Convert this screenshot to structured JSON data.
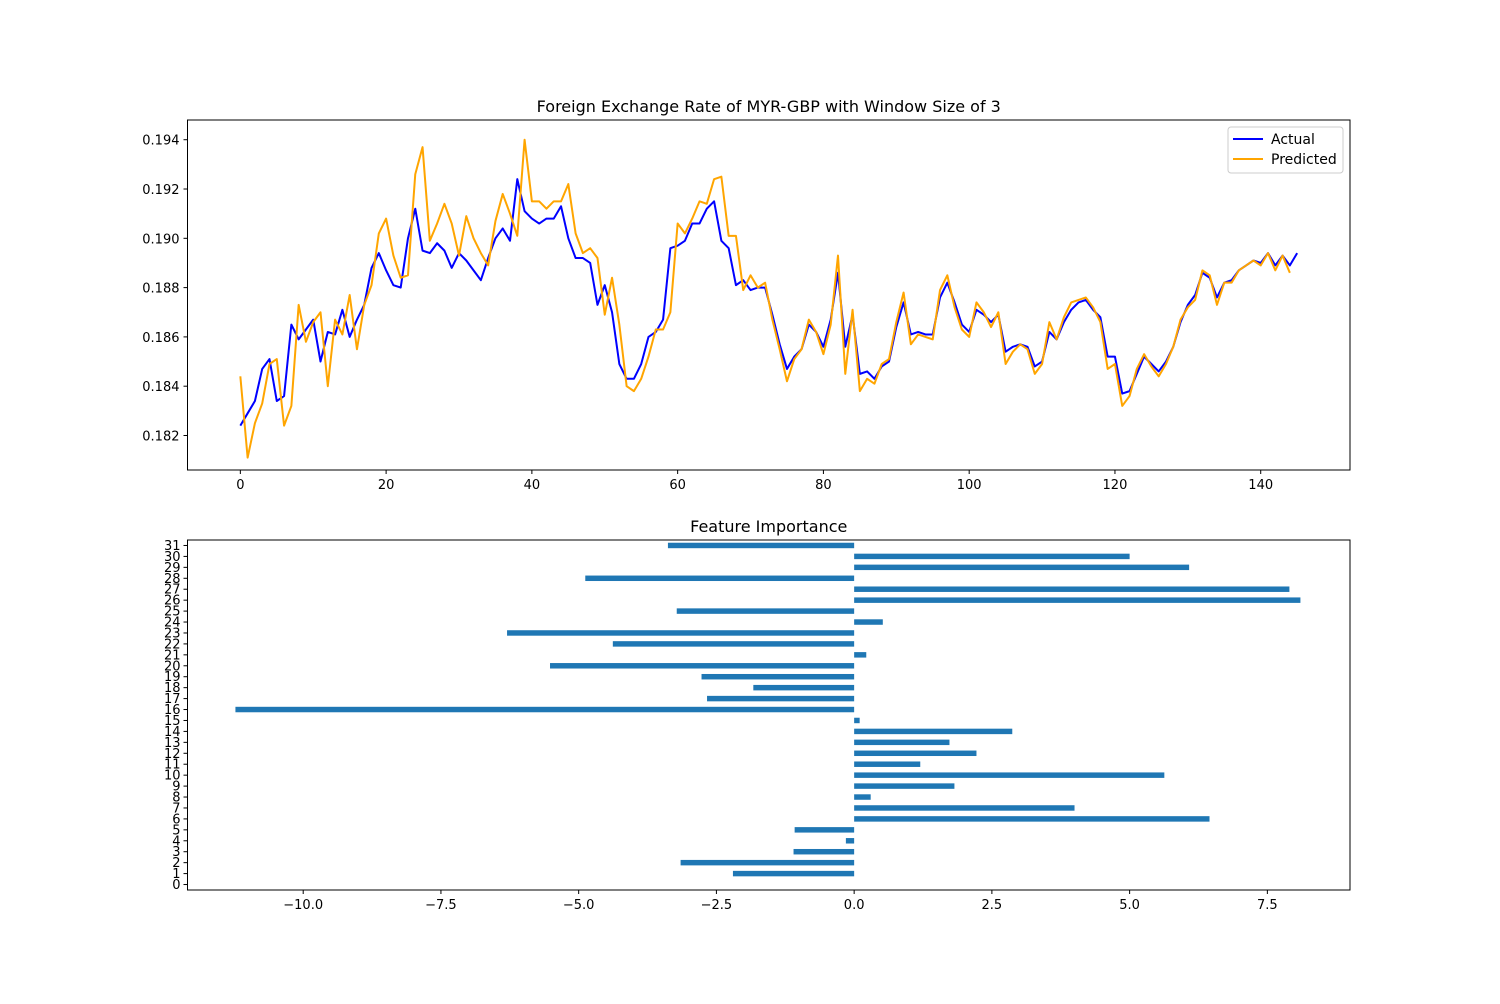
{
  "chart_data": [
    {
      "type": "line",
      "title": "Foreign Exchange Rate of MYR-GBP with Window Size of 3",
      "xlabel": "",
      "ylabel": "",
      "xlim": [
        -7.25,
        152.25
      ],
      "ylim": [
        0.1806,
        0.1948
      ],
      "xticks": [
        0,
        20,
        40,
        60,
        80,
        100,
        120,
        140
      ],
      "xtick_labels": [
        "0",
        "20",
        "40",
        "60",
        "80",
        "100",
        "120",
        "140"
      ],
      "yticks": [
        0.182,
        0.184,
        0.186,
        0.188,
        0.19,
        0.192,
        0.194
      ],
      "ytick_labels": [
        "0.182",
        "0.184",
        "0.186",
        "0.188",
        "0.190",
        "0.192",
        "0.194"
      ],
      "grid": false,
      "legend_position": "top-right",
      "series": [
        {
          "name": "Actual",
          "color": "#0000ff",
          "values": [
            0.1824,
            0.1829,
            0.1834,
            0.1847,
            0.1851,
            0.1834,
            0.1836,
            0.1865,
            0.1859,
            0.1863,
            0.1867,
            0.185,
            0.1862,
            0.1861,
            0.1871,
            0.186,
            0.1867,
            0.1873,
            0.1888,
            0.1894,
            0.1887,
            0.1881,
            0.188,
            0.19,
            0.1912,
            0.1895,
            0.1894,
            0.1898,
            0.1895,
            0.1888,
            0.1894,
            0.1891,
            0.1887,
            0.1883,
            0.1892,
            0.19,
            0.1904,
            0.1899,
            0.1924,
            0.1911,
            0.1908,
            0.1906,
            0.1908,
            0.1908,
            0.1913,
            0.19,
            0.1892,
            0.1892,
            0.189,
            0.1873,
            0.1881,
            0.187,
            0.1849,
            0.1843,
            0.1843,
            0.1849,
            0.186,
            0.1862,
            0.1867,
            0.1896,
            0.1897,
            0.1899,
            0.1906,
            0.1906,
            0.1912,
            0.1915,
            0.1899,
            0.1896,
            0.1881,
            0.1883,
            0.1879,
            0.188,
            0.188,
            0.1869,
            0.1857,
            0.1847,
            0.1852,
            0.1855,
            0.1865,
            0.1862,
            0.1856,
            0.1867,
            0.1886,
            0.1856,
            0.1869,
            0.1845,
            0.1846,
            0.1843,
            0.1848,
            0.185,
            0.1864,
            0.1874,
            0.1861,
            0.1862,
            0.1861,
            0.1861,
            0.1876,
            0.1882,
            0.1874,
            0.1865,
            0.1862,
            0.1871,
            0.1869,
            0.1866,
            0.1869,
            0.1854,
            0.1856,
            0.1857,
            0.1856,
            0.1848,
            0.185,
            0.1862,
            0.1859,
            0.1866,
            0.1871,
            0.1874,
            0.1875,
            0.1871,
            0.1868,
            0.1852,
            0.1852,
            0.1837,
            0.1838,
            0.1845,
            0.1852,
            0.1849,
            0.1846,
            0.185,
            0.1856,
            0.1866,
            0.1873,
            0.1877,
            0.1886,
            0.1884,
            0.1876,
            0.1882,
            0.1883,
            0.1887,
            0.1889,
            0.1891,
            0.189,
            0.1894,
            0.1889,
            0.1893,
            0.1889,
            0.1894
          ]
        },
        {
          "name": "Predicted",
          "color": "#ffa500",
          "values": [
            0.1844,
            0.1811,
            0.1825,
            0.1833,
            0.1849,
            0.1851,
            0.1824,
            0.1832,
            0.1873,
            0.1858,
            0.1866,
            0.187,
            0.184,
            0.1867,
            0.1861,
            0.1877,
            0.1855,
            0.1873,
            0.1881,
            0.1902,
            0.1908,
            0.1893,
            0.1884,
            0.1885,
            0.1926,
            0.1937,
            0.1899,
            0.1906,
            0.1914,
            0.1906,
            0.1893,
            0.1909,
            0.19,
            0.1894,
            0.1889,
            0.1907,
            0.1918,
            0.191,
            0.1901,
            0.194,
            0.1915,
            0.1915,
            0.1912,
            0.1915,
            0.1915,
            0.1922,
            0.1902,
            0.1894,
            0.1896,
            0.1892,
            0.1869,
            0.1884,
            0.1865,
            0.184,
            0.1838,
            0.1843,
            0.1852,
            0.1863,
            0.1863,
            0.187,
            0.1906,
            0.1902,
            0.1908,
            0.1915,
            0.1914,
            0.1924,
            0.1925,
            0.1901,
            0.1901,
            0.1879,
            0.1885,
            0.188,
            0.1882,
            0.1867,
            0.1855,
            0.1842,
            0.1851,
            0.1855,
            0.1867,
            0.1862,
            0.1853,
            0.1865,
            0.1893,
            0.1845,
            0.1871,
            0.1838,
            0.1843,
            0.1841,
            0.1849,
            0.1851,
            0.1866,
            0.1878,
            0.1857,
            0.1861,
            0.186,
            0.1859,
            0.1879,
            0.1885,
            0.1872,
            0.1863,
            0.186,
            0.1874,
            0.187,
            0.1864,
            0.187,
            0.1849,
            0.1854,
            0.1857,
            0.1855,
            0.1845,
            0.1849,
            0.1866,
            0.1859,
            0.1868,
            0.1874,
            0.1875,
            0.1876,
            0.1872,
            0.1866,
            0.1847,
            0.1849,
            0.1832,
            0.1836,
            0.1847,
            0.1853,
            0.1848,
            0.1844,
            0.1849,
            0.1856,
            0.1867,
            0.1872,
            0.1875,
            0.1887,
            0.1885,
            0.1873,
            0.1882,
            0.1882,
            0.1887,
            0.1889,
            0.1891,
            0.1889,
            0.1894,
            0.1887,
            0.1893,
            0.1886
          ]
        }
      ]
    },
    {
      "type": "bar",
      "orientation": "horizontal",
      "title": "Feature Importance",
      "xlabel": "",
      "ylabel": "",
      "xlim": [
        -12.1,
        9.0
      ],
      "xticks": [
        -10.0,
        -7.5,
        -5.0,
        -2.5,
        0.0,
        2.5,
        5.0,
        7.5
      ],
      "xtick_labels": [
        "−10.0",
        "−7.5",
        "−5.0",
        "−2.5",
        "0.0",
        "2.5",
        "5.0",
        "7.5"
      ],
      "color": "#1f77b4",
      "grid": false,
      "categories": [
        "0",
        "1",
        "2",
        "3",
        "4",
        "5",
        "6",
        "7",
        "8",
        "9",
        "10",
        "11",
        "12",
        "13",
        "14",
        "15",
        "16",
        "17",
        "18",
        "19",
        "20",
        "21",
        "22",
        "23",
        "24",
        "25",
        "26",
        "27",
        "28",
        "29",
        "30",
        "31"
      ],
      "values": [
        0.0,
        -2.2,
        -3.15,
        -1.1,
        -0.15,
        -1.08,
        6.45,
        4.0,
        0.3,
        1.82,
        5.63,
        1.2,
        2.22,
        1.73,
        2.87,
        0.1,
        -11.23,
        -2.67,
        -1.83,
        -2.77,
        -5.52,
        0.22,
        -4.38,
        -6.3,
        0.52,
        -3.22,
        8.1,
        7.9,
        -4.88,
        6.08,
        5.0,
        -3.38
      ]
    }
  ]
}
